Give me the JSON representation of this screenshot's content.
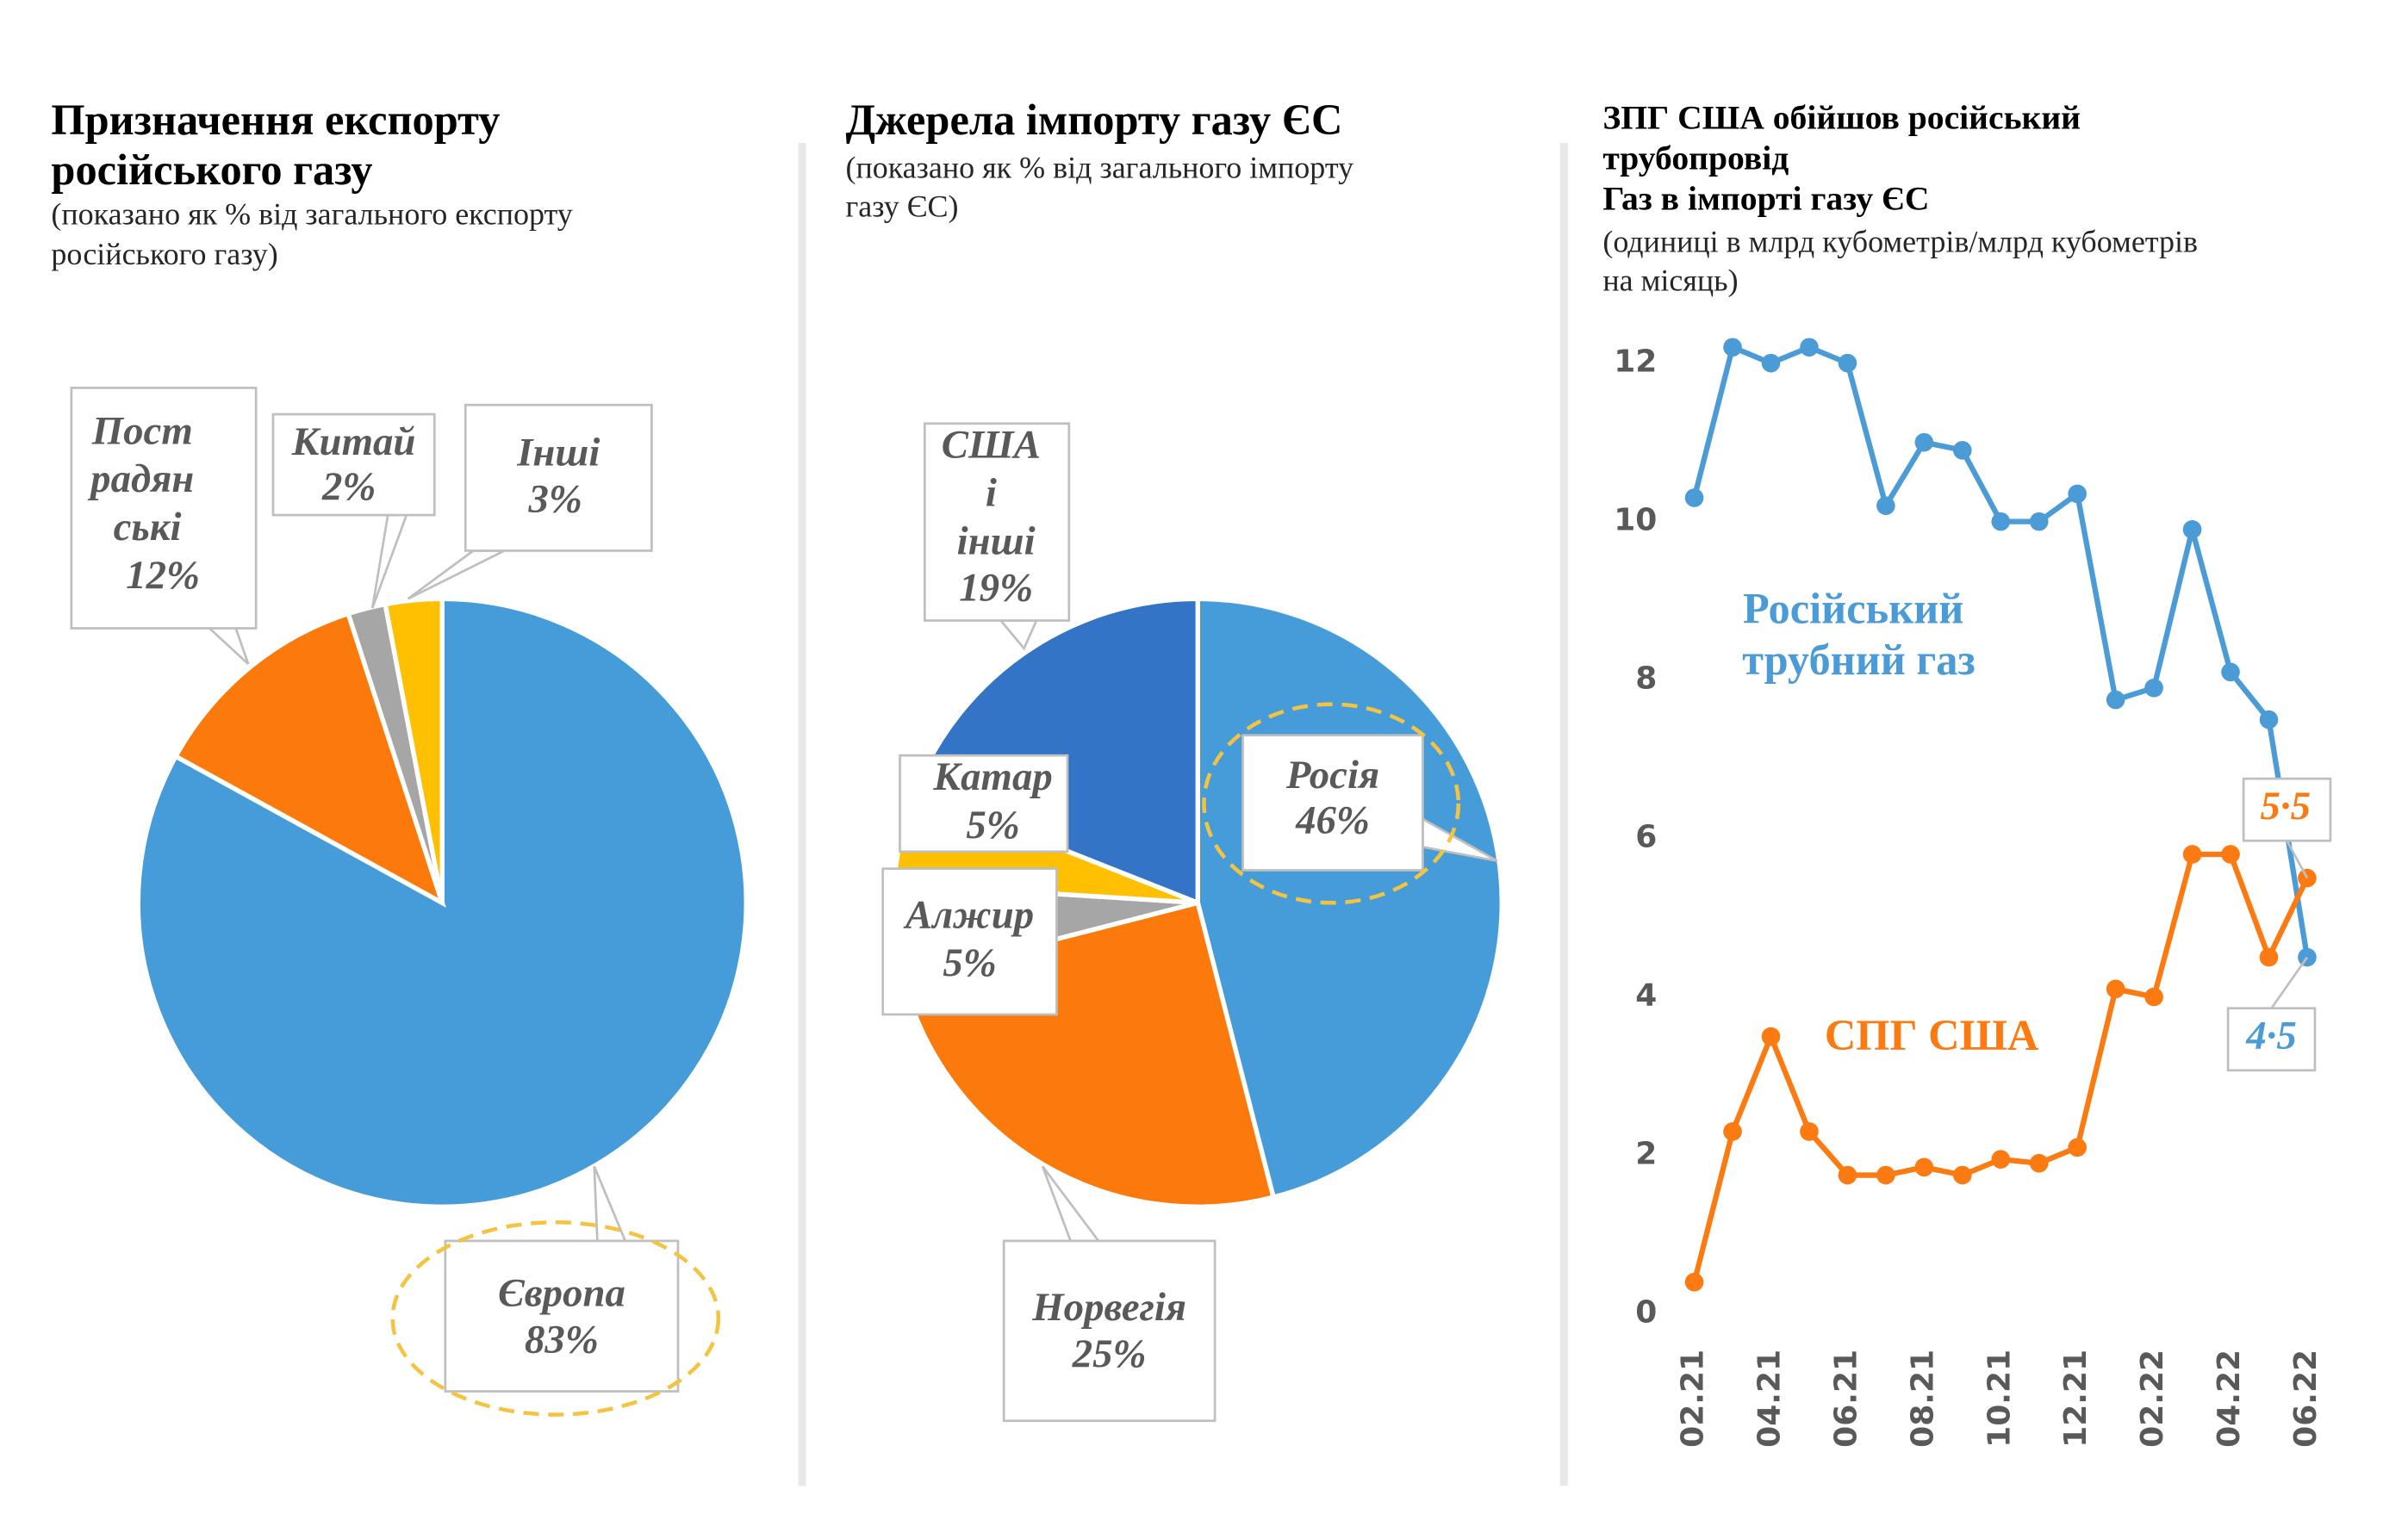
{
  "chart_data": [
    {
      "type": "pie",
      "title": "Призначення експорту\nросійського газу",
      "subtitle": "(показано як % від загального експорту\nросійського газу)",
      "categories": [
        "Європа",
        "Пост радян ські",
        "Китай",
        "Інші"
      ],
      "values": [
        83,
        12,
        2,
        3
      ],
      "value_labels": [
        "83%",
        "12%",
        "2%",
        "3%"
      ],
      "colors": [
        "#459cd9",
        "#fb7a0b",
        "#a6a6a6",
        "#fec000"
      ]
    },
    {
      "type": "pie",
      "title": "Джерела імпорту газу ЄС",
      "subtitle": "(показано як % від загального імпорту\nгазу ЄС)",
      "categories": [
        "Росія",
        "Норвегія",
        "Алжир",
        "Катар",
        "США і інші"
      ],
      "values": [
        46,
        25,
        5,
        5,
        19
      ],
      "value_labels": [
        "46%",
        "25%",
        "5%",
        "5%",
        "19%"
      ],
      "colors": [
        "#459cd9",
        "#fb7a0b",
        "#a6a6a6",
        "#fec000",
        "#3374c6"
      ]
    },
    {
      "type": "line",
      "title": "ЗПГ США обійшов російський\nтрубопровід\nГаз в імпорті газу ЄС",
      "subtitle": "(одиниці в млрд кубометрів/млрд кубометрів\nна місяць)",
      "categories": [
        "02.21",
        null,
        "04.21",
        null,
        "06.21",
        null,
        "08.21",
        null,
        "10.21",
        null,
        "12.21",
        null,
        "02.22",
        null,
        "04.22",
        null,
        "06.22"
      ],
      "series": [
        {
          "name": "Російський\nтрубний газ",
          "color": "#4a9bd6",
          "values": [
            10.3,
            12.2,
            12.0,
            12.2,
            12.0,
            10.2,
            11.0,
            10.9,
            10.0,
            10.0,
            10.35,
            7.75,
            7.9,
            9.9,
            8.1,
            7.5,
            4.5
          ],
          "value_labels": [
            null,
            null,
            null,
            null,
            null,
            null,
            null,
            null,
            null,
            null,
            null,
            null,
            null,
            null,
            null,
            null,
            "4·5"
          ]
        },
        {
          "name": "СПГ США",
          "color": "#fb7a11",
          "values": [
            0.4,
            2.3,
            3.5,
            2.3,
            1.75,
            1.75,
            1.85,
            1.75,
            1.95,
            1.9,
            2.1,
            4.1,
            4.0,
            5.8,
            5.8,
            4.5,
            5.5
          ],
          "value_labels": [
            null,
            null,
            null,
            null,
            null,
            null,
            null,
            null,
            null,
            null,
            null,
            null,
            null,
            null,
            null,
            null,
            "5·5"
          ]
        }
      ],
      "ylim": [
        0,
        12.3
      ],
      "yticks": [
        0,
        2,
        4,
        6,
        8,
        10,
        12
      ],
      "grid": false
    }
  ]
}
